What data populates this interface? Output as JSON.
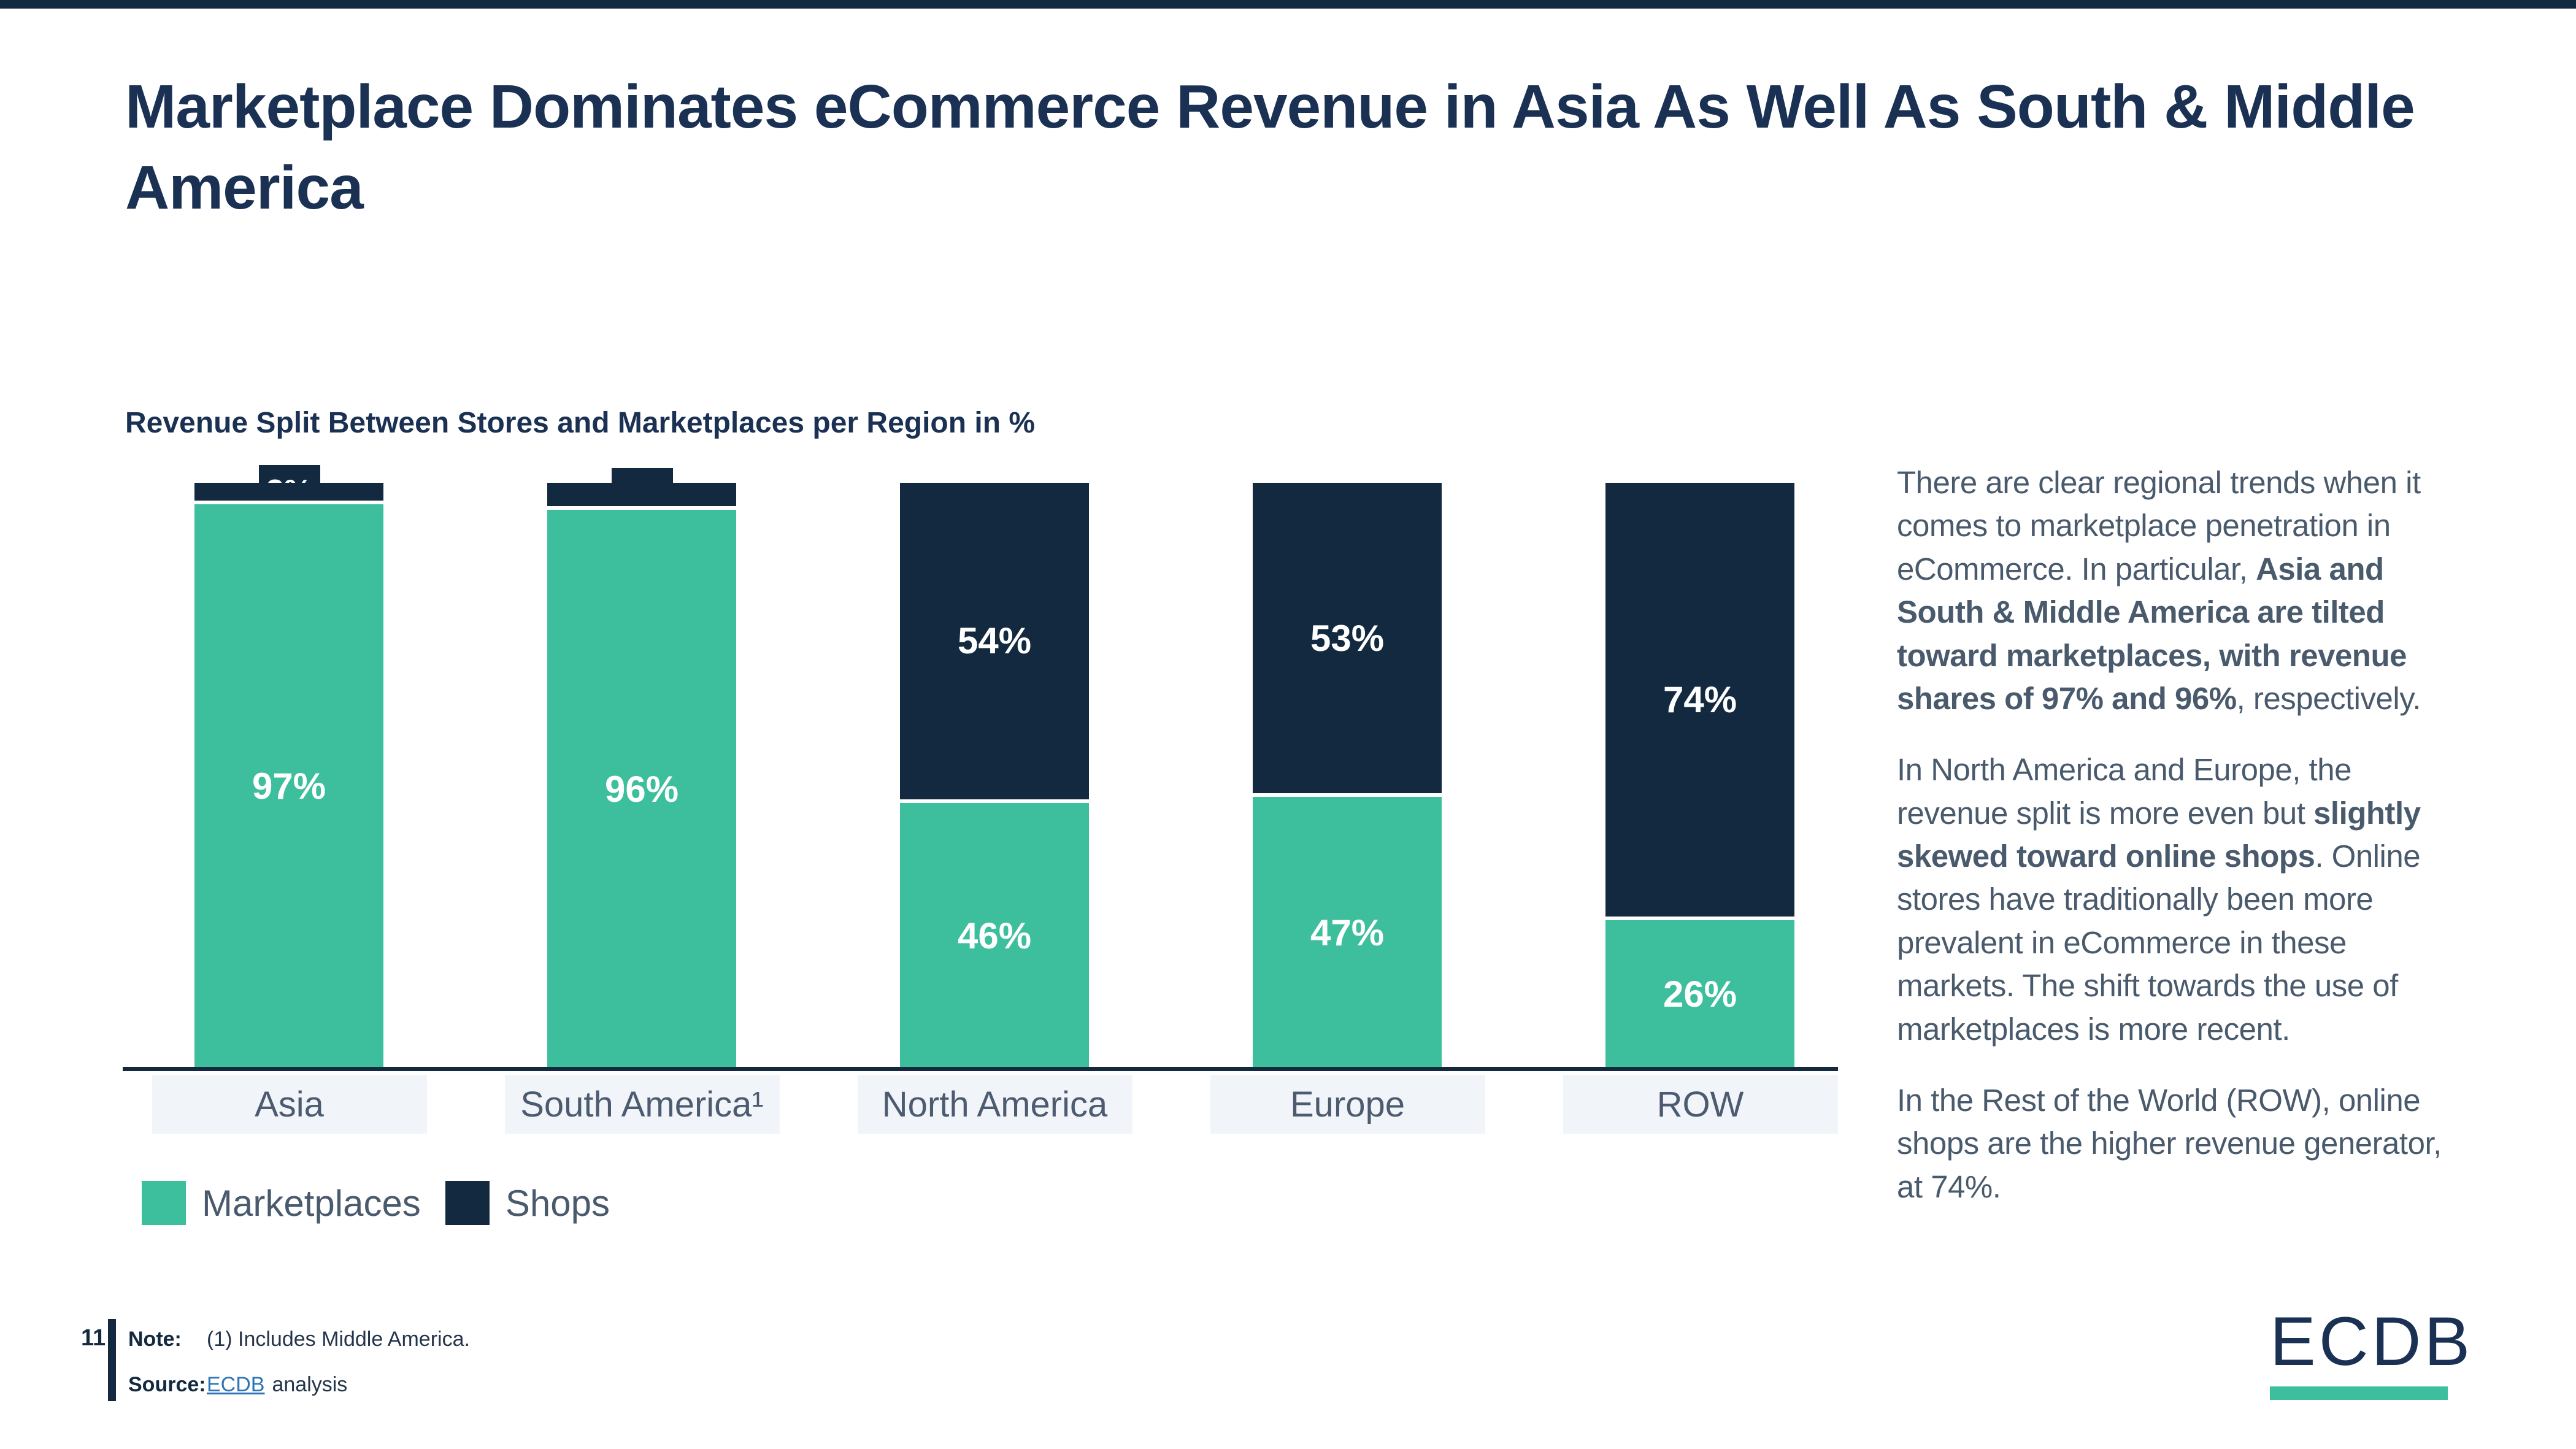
{
  "page": {
    "title": "Marketplace Dominates eCommerce Revenue in Asia As Well As South & Middle America"
  },
  "colors": {
    "navy": "#13293F",
    "title_navy": "#1A3153",
    "green": "#3DBF9D",
    "category_box_bg": "#F1F5F9",
    "body_text": "#4A5A6D",
    "link_blue": "#2E74B5"
  },
  "chart_data": {
    "type": "bar",
    "stacked": true,
    "title": "Revenue Split Between Stores and Marketplaces per Region in %",
    "categories": [
      "Asia",
      "South America¹",
      "North America",
      "Europe",
      "ROW"
    ],
    "series": [
      {
        "name": "Marketplaces",
        "color": "#3DBF9D",
        "values": [
          97,
          96,
          46,
          47,
          26
        ]
      },
      {
        "name": "Shops",
        "color": "#13293F",
        "values": [
          3,
          4,
          54,
          53,
          74
        ]
      }
    ],
    "value_suffix": "%",
    "ylim": [
      0,
      100
    ],
    "grid": false,
    "legend_position": "bottom-left",
    "small_value_badge_threshold": 10
  },
  "commentary": {
    "paragraphs": [
      [
        {
          "t": "There are clear regional trends when it comes to marketplace penetration in eCommerce. In particular, "
        },
        {
          "t": "Asia and South & Middle America are tilted toward marketplaces, with revenue shares of 97% and 96%",
          "b": true
        },
        {
          "t": ", respectively."
        }
      ],
      [
        {
          "t": "In North America and Europe, the revenue split is more even but "
        },
        {
          "t": "slightly skewed toward online shops",
          "b": true
        },
        {
          "t": ". Online stores have traditionally been more prevalent in eCommerce in these markets. The shift towards the use of marketplaces is more recent."
        }
      ],
      [
        {
          "t": "In the Rest of the World (ROW), online shops are the higher revenue generator, at 74%."
        }
      ]
    ]
  },
  "footer": {
    "page_number": "11",
    "note_label": "Note:",
    "note_text": "(1) Includes Middle America.",
    "source_label": "Source:",
    "source_link": "ECDB",
    "source_text": "analysis"
  },
  "logo": {
    "text": "ECDB"
  }
}
